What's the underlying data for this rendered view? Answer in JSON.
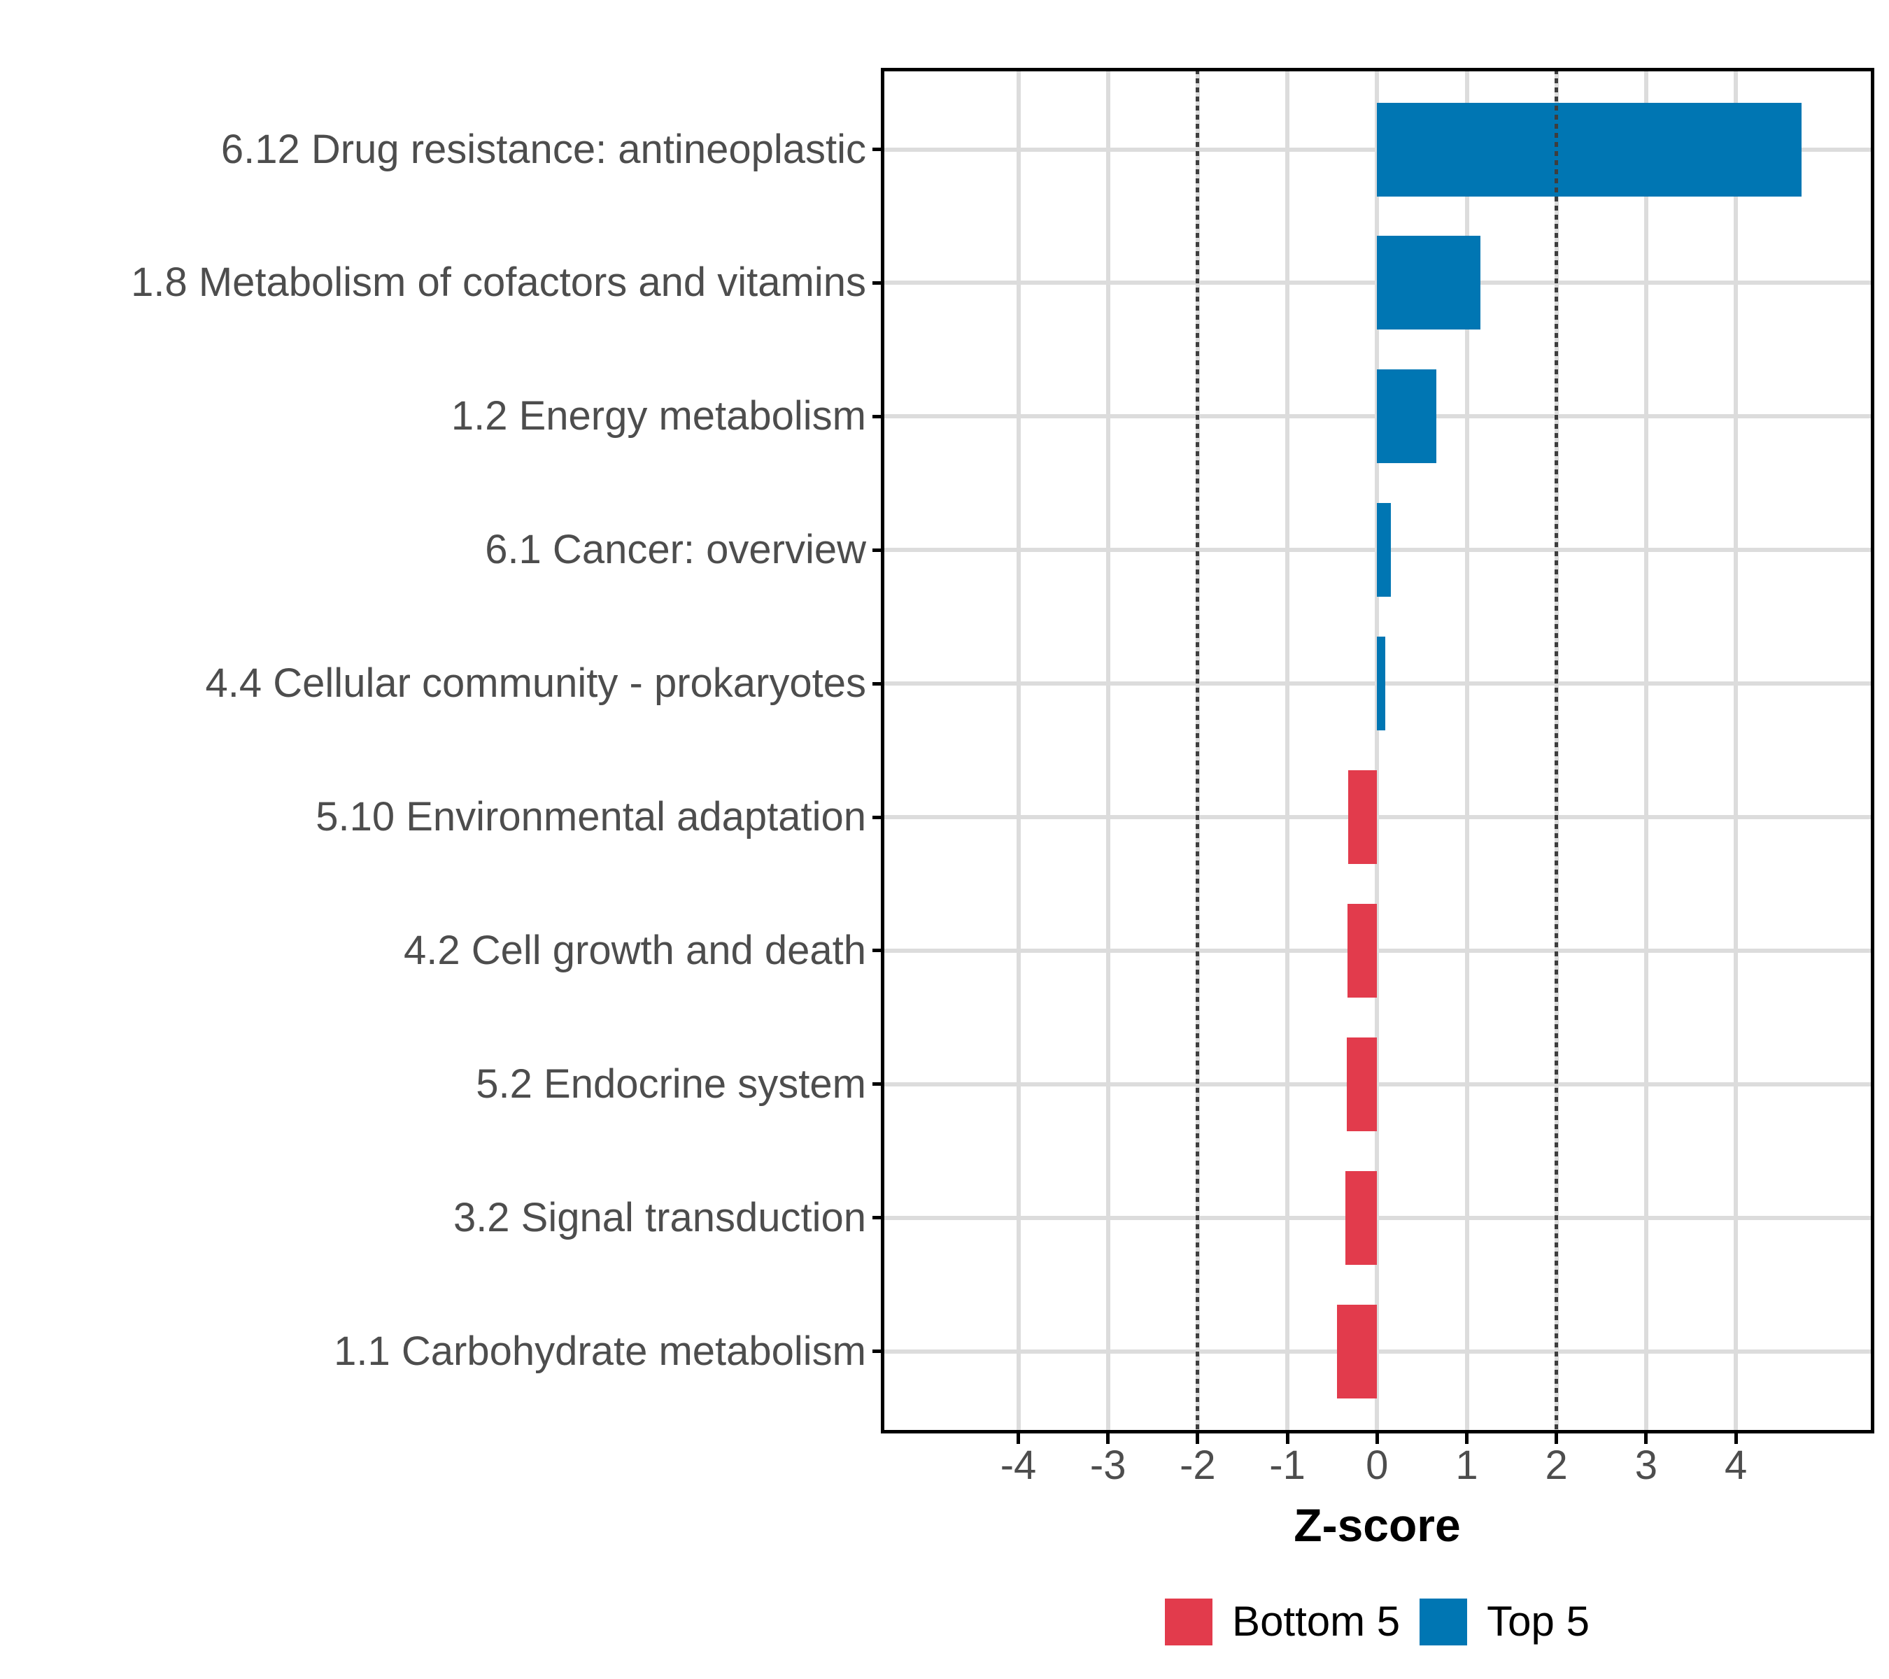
{
  "chart_data": {
    "type": "bar",
    "orientation": "horizontal",
    "title": "",
    "categories": [
      "6.12 Drug resistance: antineoplastic",
      "1.8 Metabolism of cofactors and vitamins",
      "1.2 Energy metabolism",
      "6.1 Cancer: overview",
      "4.4 Cellular community - prokaryotes",
      "5.10 Environmental adaptation",
      "4.2 Cell growth and death",
      "5.2 Endocrine system",
      "3.2 Signal transduction",
      "1.1 Carbohydrate metabolism"
    ],
    "values": [
      4.73,
      1.15,
      0.66,
      0.15,
      0.09,
      -0.32,
      -0.33,
      -0.34,
      -0.35,
      -0.45
    ],
    "groups": [
      "Top 5",
      "Top 5",
      "Top 5",
      "Top 5",
      "Top 5",
      "Bottom 5",
      "Bottom 5",
      "Bottom 5",
      "Bottom 5",
      "Bottom 5"
    ],
    "x_axis": {
      "label": "Z-score",
      "ticks": [
        -4,
        -3,
        -2,
        -1,
        0,
        1,
        2,
        3,
        4
      ],
      "tick_labels": [
        "-4",
        "-3",
        "-2",
        "-1",
        "0",
        "1",
        "2",
        "3",
        "4"
      ],
      "limits": [
        -5.52,
        5.52
      ],
      "reference_lines": [
        -2,
        2
      ]
    },
    "legend": [
      {
        "label": "Bottom 5",
        "color": "#E23B4C"
      },
      {
        "label": "Top 5",
        "color": "#0076B3"
      }
    ],
    "style": {
      "gridline_color": "#DCDCDC",
      "reference_line_color": "#3E3E3E",
      "axis_text_color": "#4D4D4D",
      "grid_vertical": "at each x tick",
      "grid_horizontal": "at each category center",
      "legend_position": "bottom"
    }
  }
}
